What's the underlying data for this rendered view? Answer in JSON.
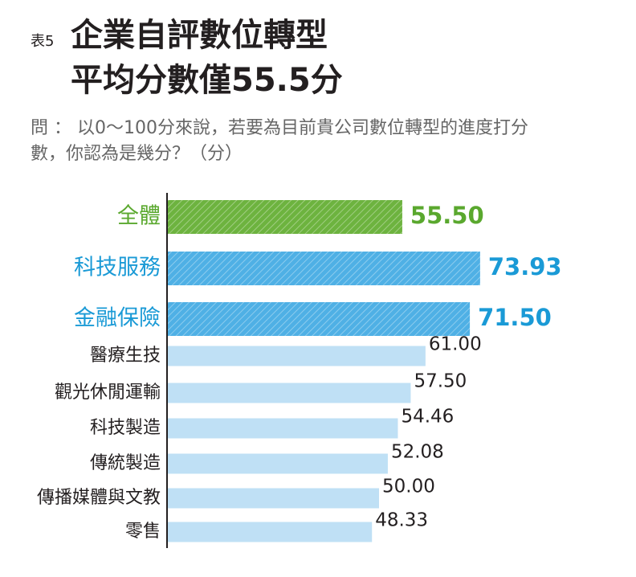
{
  "chart_data": {
    "type": "bar",
    "orientation": "horizontal",
    "table_label": "表5",
    "title": [
      "企業自評數位轉型",
      "平均分數僅55.5分"
    ],
    "subtitle": [
      "問 ： 以0～100分來說，若要為目前貴公司數位轉型的進度打分",
      "數，你認為是幾分？（分）"
    ],
    "categories": [
      "全體",
      "科技服務",
      "金融保險",
      "醫療生技",
      "觀光休閒運輸",
      "科技製造",
      "傳統製造",
      "傳播媒體與文教",
      "零售"
    ],
    "values": [
      55.5,
      73.93,
      71.5,
      61,
      57.5,
      54.46,
      52.08,
      50,
      48.33
    ],
    "value_labels": [
      "55.50",
      "73.93",
      "71.50",
      "61.00",
      "57.50",
      "54.46",
      "52.08",
      "50.00",
      "48.33"
    ],
    "colors": [
      "#6db33f",
      "#4fb0e5",
      "#4fb0e5",
      "#bfe0f5",
      "#bfe0f5",
      "#bfe0f5",
      "#bfe0f5",
      "#bfe0f5",
      "#bfe0f5"
    ],
    "text_colors": [
      "#5aa82e",
      "#1a9ad6",
      "#1a9ad6",
      "#231f20",
      "#231f20",
      "#231f20",
      "#231f20",
      "#231f20",
      "#231f20"
    ]
  }
}
